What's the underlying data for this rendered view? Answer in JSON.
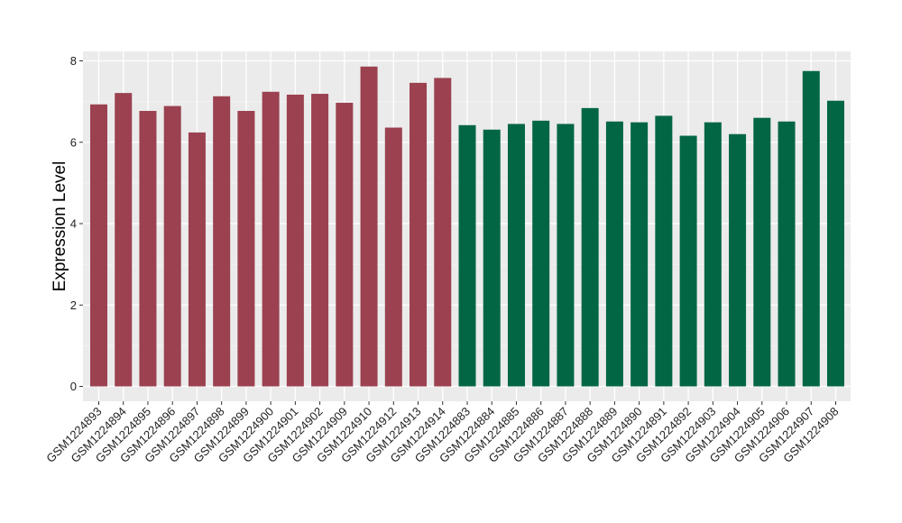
{
  "chart_data": {
    "type": "bar",
    "title": "",
    "xlabel": "",
    "ylabel": "Expression Level",
    "ylim": [
      0,
      8.2
    ],
    "yticks": [
      0,
      2,
      4,
      6,
      8
    ],
    "grid": true,
    "legend": "none",
    "panel_color": "#EBEBEB",
    "categories": [
      "GSM1224893",
      "GSM1224894",
      "GSM1224895",
      "GSM1224896",
      "GSM1224897",
      "GSM1224898",
      "GSM1224899",
      "GSM1224900",
      "GSM1224901",
      "GSM1224902",
      "GSM1224909",
      "GSM1224910",
      "GSM1224912",
      "GSM1224913",
      "GSM1224914",
      "GSM1224883",
      "GSM1224884",
      "GSM1224885",
      "GSM1224886",
      "GSM1224887",
      "GSM1224888",
      "GSM1224889",
      "GSM1224890",
      "GSM1224891",
      "GSM1224892",
      "GSM1224903",
      "GSM1224904",
      "GSM1224905",
      "GSM1224906",
      "GSM1224907",
      "GSM1224908"
    ],
    "values": [
      6.93,
      7.21,
      6.77,
      6.89,
      6.24,
      7.13,
      6.77,
      7.24,
      7.17,
      7.19,
      6.97,
      7.86,
      6.36,
      7.46,
      7.58,
      6.42,
      6.31,
      6.45,
      6.53,
      6.45,
      6.84,
      6.51,
      6.49,
      6.65,
      6.16,
      6.49,
      6.2,
      6.6,
      6.51,
      7.75,
      7.02
    ],
    "groups": [
      0,
      0,
      0,
      0,
      0,
      0,
      0,
      0,
      0,
      0,
      0,
      0,
      0,
      0,
      0,
      1,
      1,
      1,
      1,
      1,
      1,
      1,
      1,
      1,
      1,
      1,
      1,
      1,
      1,
      1,
      1
    ],
    "group_colors": [
      "#9B4150",
      "#026645"
    ]
  }
}
